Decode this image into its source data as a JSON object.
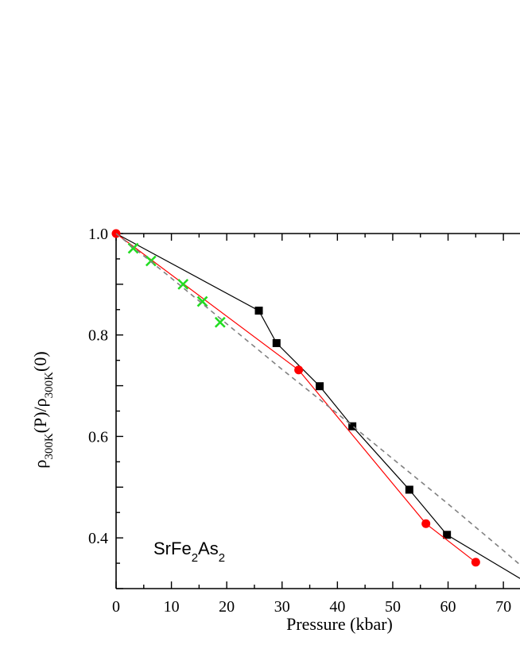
{
  "chart_data": {
    "type": "line",
    "xlabel": "Pressure (kbar)",
    "ylabel": {
      "base": "ρ",
      "sub1": "300K",
      "mid": "(P)/ρ",
      "sub2": "300K",
      "tail": "(0)"
    },
    "annotation": {
      "parts": [
        {
          "text": "SrFe",
          "sub": false
        },
        {
          "text": "2",
          "sub": true
        },
        {
          "text": "As",
          "sub": false
        },
        {
          "text": "2",
          "sub": true
        }
      ]
    },
    "xlim": [
      0,
      73
    ],
    "ylim": [
      0.3,
      1.0
    ],
    "xticks": [
      0,
      10,
      20,
      30,
      40,
      50,
      60,
      70
    ],
    "yticks": [
      0.4,
      0.6,
      0.8,
      1.0
    ],
    "xtick_labels": [
      "0",
      "10",
      "20",
      "30",
      "40",
      "50",
      "60",
      "70"
    ],
    "ytick_labels": [
      "0.4",
      "0.6",
      "0.8",
      "1.0"
    ],
    "grid": false,
    "series": [
      {
        "marker": "square",
        "color": "#000000",
        "line": "solid",
        "points": [
          [
            0,
            1.0
          ],
          [
            25.8,
            0.848
          ],
          [
            29,
            0.784
          ],
          [
            36.8,
            0.699
          ],
          [
            42.7,
            0.62
          ],
          [
            53,
            0.495
          ],
          [
            59.8,
            0.406
          ],
          [
            73,
            0.32
          ]
        ],
        "marked": [
          1,
          2,
          3,
          4,
          5,
          6
        ]
      },
      {
        "marker": "circle",
        "color": "#ff0000",
        "line": "solid",
        "points": [
          [
            0,
            1.0
          ],
          [
            33,
            0.731
          ],
          [
            56,
            0.428
          ],
          [
            65,
            0.352
          ]
        ],
        "marked": [
          0,
          1,
          2,
          3
        ]
      },
      {
        "marker": "x",
        "color": "#22dd22",
        "line": "none",
        "points": [
          [
            3.1,
            0.971
          ],
          [
            6.3,
            0.946
          ],
          [
            12.1,
            0.9
          ],
          [
            15.6,
            0.866
          ],
          [
            18.8,
            0.825
          ]
        ],
        "marked": [
          0,
          1,
          2,
          3,
          4
        ]
      },
      {
        "marker": "none",
        "color": "#808080",
        "line": "dashed",
        "points": [
          [
            0,
            1.0
          ],
          [
            10,
            0.912
          ],
          [
            20,
            0.822
          ],
          [
            30,
            0.732
          ],
          [
            40,
            0.645
          ],
          [
            50,
            0.556
          ],
          [
            60,
            0.467
          ],
          [
            70,
            0.375
          ],
          [
            73,
            0.347
          ]
        ],
        "marked": []
      }
    ]
  }
}
